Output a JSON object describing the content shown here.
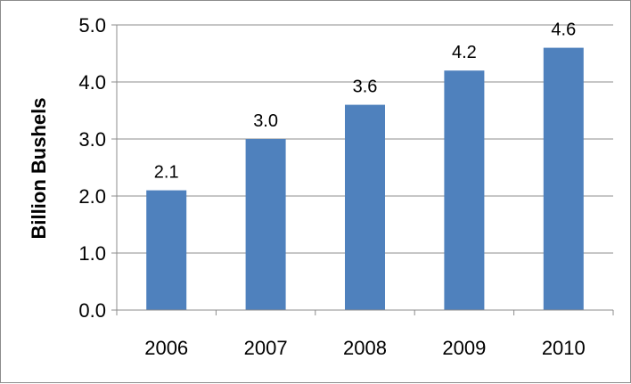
{
  "chart_data": {
    "type": "bar",
    "title": "",
    "xlabel": "",
    "ylabel": "Billion Bushels",
    "categories": [
      "2006",
      "2007",
      "2008",
      "2009",
      "2010"
    ],
    "values": [
      2.1,
      3.0,
      3.6,
      4.2,
      4.6
    ],
    "data_labels": [
      "2.1",
      "3.0",
      "3.6",
      "4.2",
      "4.6"
    ],
    "ylim": [
      0,
      5.0
    ],
    "y_ticks": [
      0.0,
      1.0,
      2.0,
      3.0,
      4.0,
      5.0
    ],
    "y_tick_labels": [
      "0.0",
      "1.0",
      "2.0",
      "3.0",
      "4.0",
      "5.0"
    ],
    "grid": true,
    "legend": "none",
    "bar_color": "#4F81BD",
    "grid_color": "#8c8c8c"
  }
}
